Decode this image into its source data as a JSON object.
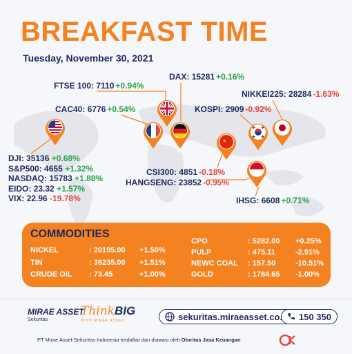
{
  "header": {
    "title": "BREAKFAST TIME",
    "date": "Tuesday, November 30, 2021"
  },
  "indices": {
    "ftse": {
      "name": "FTSE 100:",
      "value": "7110",
      "change": "+0.94%"
    },
    "dax": {
      "name": "DAX:",
      "value": "15281",
      "change": "+0.16%"
    },
    "nikkei": {
      "name": "NIKKEI225:",
      "value": "28284",
      "change": "-1.63%"
    },
    "cac": {
      "name": "CAC40:",
      "value": "6776",
      "change": "+0.54%"
    },
    "kospi": {
      "name": "KOSPI:",
      "value": "2909",
      "change": "-0.92%"
    },
    "csi": {
      "name": "CSI300:",
      "value": "4851",
      "change": "-0.18%"
    },
    "hangseng": {
      "name": "HANGSENG:",
      "value": "23852",
      "change": "-0.95%"
    },
    "ihsg": {
      "name": "IHSG:",
      "value": "6608",
      "change": "+0.71%"
    },
    "us_list": [
      {
        "name": "DJI:",
        "value": "35136",
        "change": "+0.68%"
      },
      {
        "name": "S&P500:",
        "value": "4655",
        "change": "+1.32%"
      },
      {
        "name": "NASDAQ:",
        "value": "15783",
        "change": "+1.88%"
      },
      {
        "name": "EIDO:",
        "value": "23.32",
        "change": "+1.57%"
      },
      {
        "name": "VIX:",
        "value": "22.96",
        "change": "-19.78%"
      }
    ]
  },
  "commodities": {
    "title": "COMMODITIES",
    "left": [
      {
        "name": "NICKEL",
        "price": ": 20195.00",
        "change": "+1.50%"
      },
      {
        "name": "TIN",
        "price": ": 39235.00",
        "change": "+1.51%"
      },
      {
        "name": "CRUDE OIL",
        "price": ": 73.45",
        "change": "+1.00%"
      }
    ],
    "right": [
      {
        "name": "CPO",
        "price": ": 5282.00",
        "change": "+0.25%"
      },
      {
        "name": "PULP",
        "price": ": 475.11",
        "change": "-2.91%"
      },
      {
        "name": "NEWC COAL",
        "price": ": 157.50",
        "change": "-10.51%"
      },
      {
        "name": "GOLD",
        "price": ": 1784.65",
        "change": "-1.00%"
      }
    ]
  },
  "footer": {
    "mirae_name": "MIRAE ASSET",
    "mirae_sub": "Sekuritas",
    "think_1": "Think",
    "think_2": "BIG",
    "think_tag": "WITH MIRAE ASSET",
    "website": "sekuritas.miraeasset.co.id",
    "phone": "150 350",
    "disclaimer_a": "PT Mirae Asset Sekuritas Indonesia terdaftar dan diawasi oleh ",
    "disclaimer_b": "Otoritas Jasa Keuangan",
    "ojk": "OJK"
  },
  "colors": {
    "accent": "#f58220",
    "navy": "#1d2a5c",
    "up": "#2ba24c",
    "down": "#e0473f"
  }
}
